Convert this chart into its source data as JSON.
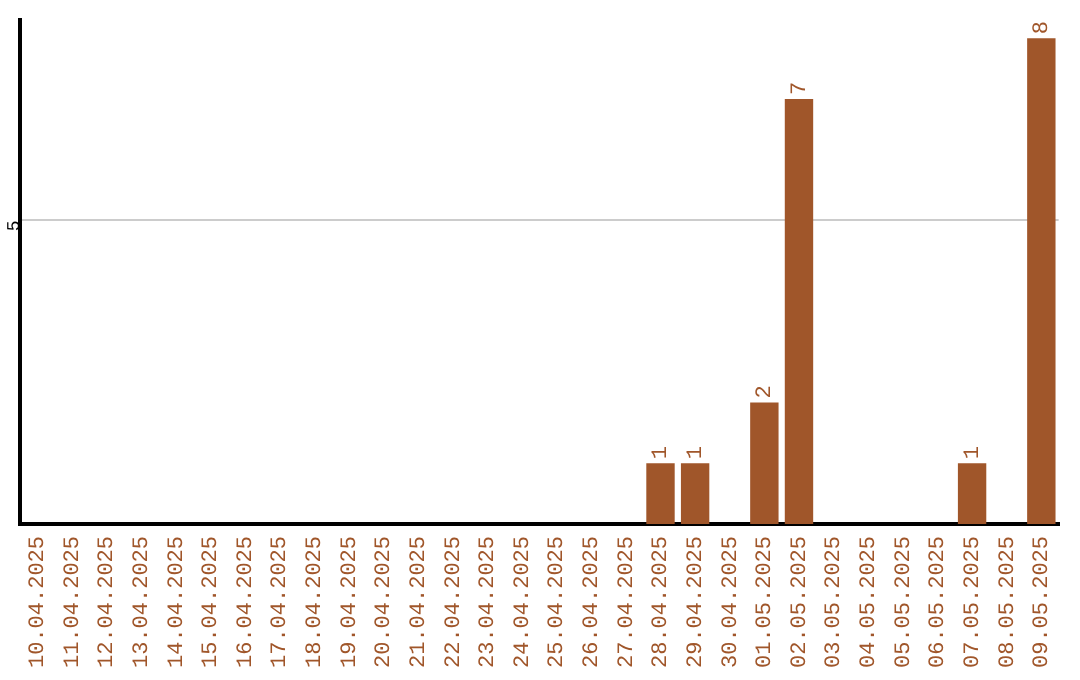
{
  "chart_data": {
    "type": "bar",
    "categories": [
      "10.04.2025",
      "11.04.2025",
      "12.04.2025",
      "13.04.2025",
      "14.04.2025",
      "15.04.2025",
      "16.04.2025",
      "17.04.2025",
      "18.04.2025",
      "19.04.2025",
      "20.04.2025",
      "21.04.2025",
      "22.04.2025",
      "23.04.2025",
      "24.04.2025",
      "25.04.2025",
      "26.04.2025",
      "27.04.2025",
      "28.04.2025",
      "29.04.2025",
      "30.04.2025",
      "01.05.2025",
      "02.05.2025",
      "03.05.2025",
      "04.05.2025",
      "05.05.2025",
      "06.05.2025",
      "07.05.2025",
      "08.05.2025",
      "09.05.2025"
    ],
    "values": [
      null,
      null,
      null,
      null,
      null,
      null,
      null,
      null,
      null,
      null,
      null,
      null,
      null,
      null,
      null,
      null,
      null,
      null,
      1,
      1,
      null,
      2,
      7,
      null,
      null,
      null,
      null,
      1,
      null,
      8
    ],
    "data_labels": true,
    "color": "#a0562a",
    "legend": false,
    "ylim": [
      0,
      8.3
    ],
    "yticks": [
      5
    ],
    "grid": "y"
  }
}
